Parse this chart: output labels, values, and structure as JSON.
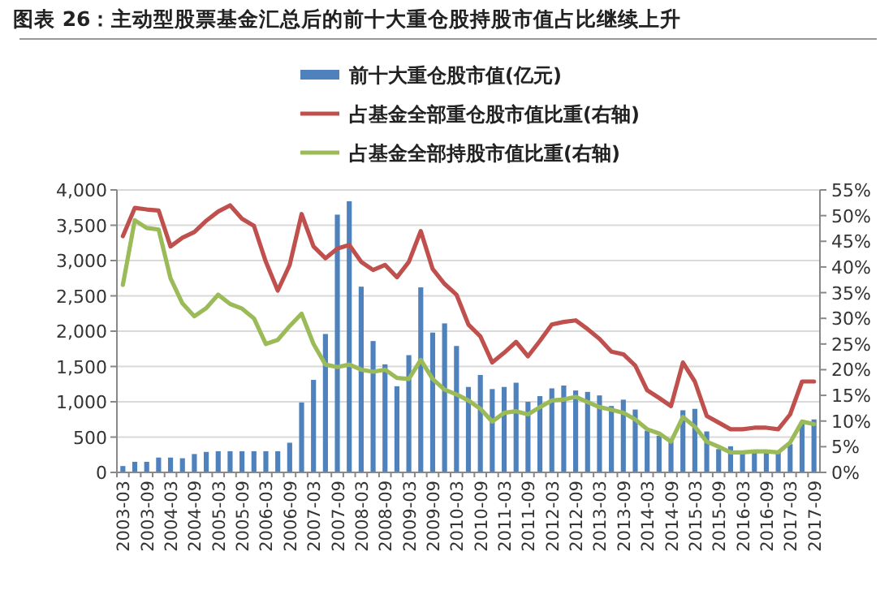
{
  "chart_data": {
    "type": "bar",
    "title": "图表 26：主动型股票基金汇总后的前十大重仓股持股市值占比继续上升",
    "categories": [
      "2003-03",
      null,
      "2003-09",
      null,
      "2004-03",
      null,
      "2004-09",
      null,
      "2005-03",
      null,
      "2005-09",
      null,
      "2006-03",
      null,
      "2006-09",
      null,
      "2007-03",
      null,
      "2007-09",
      null,
      "2008-03",
      null,
      "2008-09",
      null,
      "2009-03",
      null,
      "2009-09",
      null,
      "2010-03",
      null,
      "2010-09",
      null,
      "2011-03",
      null,
      "2011-09",
      null,
      "2012-03",
      null,
      "2012-09",
      null,
      "2013-03",
      null,
      "2013-09",
      null,
      "2014-03",
      null,
      "2014-09",
      null,
      "2015-03",
      null,
      "2015-09",
      null,
      "2016-03",
      null,
      "2016-09",
      null,
      "2017-03",
      null,
      "2017-09"
    ],
    "series": [
      {
        "name": "前十大重仓股市值(亿元)",
        "color": "#4f81bd",
        "values": [
          90,
          150,
          150,
          210,
          210,
          200,
          260,
          290,
          300,
          300,
          300,
          300,
          300,
          300,
          420,
          990,
          1310,
          1960,
          3650,
          3840,
          2630,
          1860,
          1530,
          1220,
          1660,
          2620,
          1980,
          2110,
          1790,
          1210,
          1380,
          1180,
          1210,
          1270,
          1000,
          1080,
          1190,
          1230,
          1160,
          1140,
          1090,
          940,
          1030,
          890,
          590,
          520,
          440,
          880,
          900,
          580,
          330,
          370,
          290,
          290,
          290,
          290,
          400,
          720,
          750
        ]
      },
      {
        "name": "占基金全部重仓股市值比重(右轴)",
        "type": "line",
        "axis": "y2",
        "color": "#c0504d",
        "values": [
          46,
          51.5,
          51.2,
          51,
          44,
          45.7,
          46.8,
          49,
          50.8,
          52,
          49.4,
          48,
          41,
          35.4,
          40.4,
          50.3,
          44,
          41.7,
          43.6,
          44.3,
          41,
          39.4,
          40.4,
          38,
          41,
          47,
          39.6,
          36.7,
          34.6,
          28.8,
          26.5,
          21.4,
          23.3,
          25.4,
          22.6,
          25.6,
          28.8,
          29.3,
          29.6,
          27.9,
          26,
          23.5,
          23,
          20.8,
          16,
          14.5,
          12.9,
          21.4,
          17.7,
          11,
          9.7,
          8.4,
          8.4,
          8.7,
          8.7,
          8.4,
          11.3,
          17.7,
          17.7
        ]
      },
      {
        "name": "占基金全部持股市值比重(右轴)",
        "type": "line",
        "axis": "y2",
        "color": "#9bbb59",
        "values": [
          36.5,
          49.1,
          47.6,
          47.3,
          37.8,
          32.9,
          30.4,
          32,
          34.6,
          32.8,
          31.9,
          30,
          25,
          25.8,
          28.5,
          30.9,
          25,
          21,
          20.5,
          21,
          20,
          19.6,
          20,
          18.4,
          18.2,
          21.9,
          18.2,
          16.1,
          15.2,
          14,
          12.4,
          9.9,
          11.6,
          11.9,
          11.3,
          12.7,
          14,
          14.2,
          14.7,
          13.7,
          12.7,
          12.2,
          11.6,
          10.3,
          8.4,
          7.6,
          6,
          10.8,
          8.9,
          6,
          5,
          3.9,
          3.9,
          4.1,
          4.1,
          3.9,
          5.8,
          9.9,
          9.4
        ]
      }
    ],
    "ylim": [
      0,
      4000
    ],
    "yticks": [
      {
        "value": 0,
        "label": "0"
      },
      {
        "value": 500,
        "label": "500"
      },
      {
        "value": 1000,
        "label": "1,000"
      },
      {
        "value": 1500,
        "label": "1,500"
      },
      {
        "value": 2000,
        "label": "2,000"
      },
      {
        "value": 2500,
        "label": "2,500"
      },
      {
        "value": 3000,
        "label": "3,000"
      },
      {
        "value": 3500,
        "label": "3,500"
      },
      {
        "value": 4000,
        "label": "4,000"
      }
    ],
    "y2lim": [
      0,
      55
    ],
    "y2ticks": [
      {
        "value": 0,
        "label": "0%"
      },
      {
        "value": 5,
        "label": "5%"
      },
      {
        "value": 10,
        "label": "10%"
      },
      {
        "value": 15,
        "label": "15%"
      },
      {
        "value": 20,
        "label": "20%"
      },
      {
        "value": 25,
        "label": "25%"
      },
      {
        "value": 30,
        "label": "30%"
      },
      {
        "value": 35,
        "label": "35%"
      },
      {
        "value": 40,
        "label": "40%"
      },
      {
        "value": 45,
        "label": "45%"
      },
      {
        "value": 50,
        "label": "50%"
      },
      {
        "value": 55,
        "label": "55%"
      }
    ],
    "grid": "y",
    "legend": "top"
  }
}
